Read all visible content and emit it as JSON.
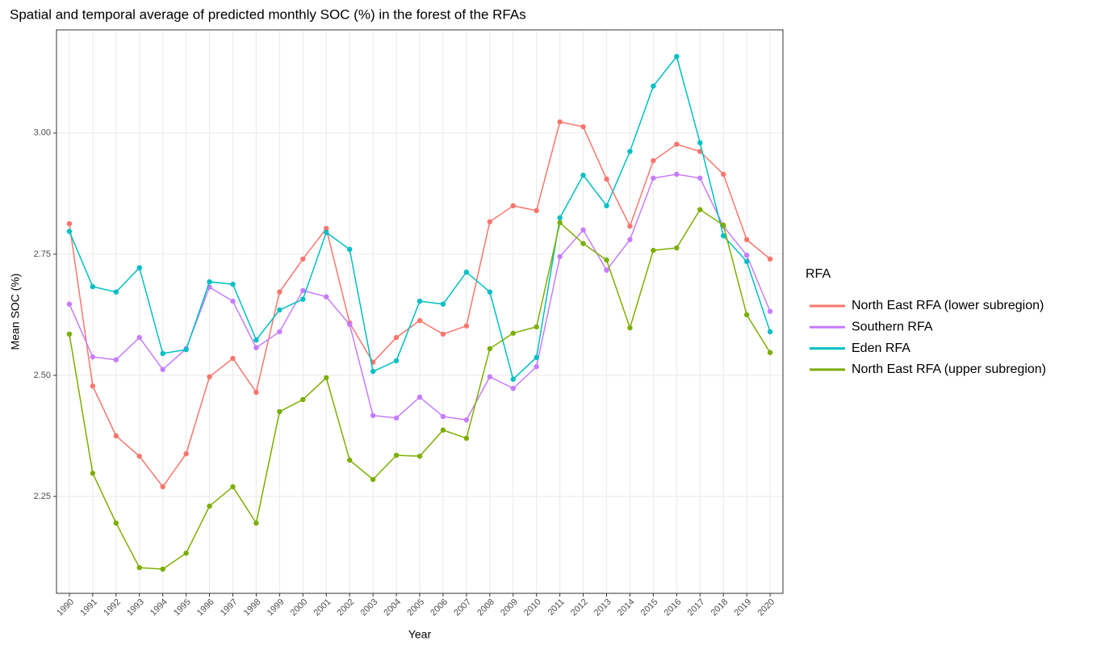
{
  "chart_data": {
    "type": "line",
    "title": "Spatial and temporal average of predicted monthly SOC (%) in the forest of the RFAs",
    "x_label": "Year",
    "y_label": "Mean SOC (%)",
    "legend_title": "RFA",
    "legend_position": "right",
    "grid": true,
    "x": [
      1990,
      1991,
      1992,
      1993,
      1994,
      1995,
      1996,
      1997,
      1998,
      1999,
      2000,
      2001,
      2002,
      2003,
      2004,
      2005,
      2006,
      2007,
      2008,
      2009,
      2010,
      2011,
      2012,
      2013,
      2014,
      2015,
      2016,
      2017,
      2018,
      2019,
      2020
    ],
    "xlim": [
      1989.45,
      2020.55
    ],
    "xticks": [
      1990,
      1991,
      1992,
      1993,
      1994,
      1995,
      1996,
      1997,
      1998,
      1999,
      2000,
      2001,
      2002,
      2003,
      2004,
      2005,
      2006,
      2007,
      2008,
      2009,
      2010,
      2011,
      2012,
      2013,
      2014,
      2015,
      2016,
      2017,
      2018,
      2019,
      2020
    ],
    "ylim": [
      2.05,
      3.213
    ],
    "yticks": [
      2.25,
      {
        "value": 2.5,
        "label": "2.50"
      },
      2.75,
      {
        "value": 3,
        "label": "3.00"
      }
    ],
    "series": [
      {
        "name": "North East RFA (lower subregion)",
        "color": "#F8766D",
        "values": [
          2.813,
          2.478,
          2.375,
          2.333,
          2.27,
          2.338,
          2.497,
          2.535,
          2.465,
          2.672,
          2.74,
          2.803,
          2.608,
          2.527,
          2.578,
          2.613,
          2.585,
          2.602,
          2.817,
          2.85,
          2.84,
          3.023,
          3.013,
          2.905,
          2.808,
          2.943,
          2.977,
          2.962,
          2.915,
          2.78,
          2.74
        ]
      },
      {
        "name": "Southern RFA",
        "color": "#C77CFF",
        "values": [
          2.647,
          2.538,
          2.532,
          2.578,
          2.512,
          2.555,
          2.682,
          2.653,
          2.557,
          2.59,
          2.675,
          2.662,
          2.605,
          2.417,
          2.412,
          2.455,
          2.415,
          2.408,
          2.497,
          2.473,
          2.518,
          2.745,
          2.8,
          2.717,
          2.78,
          2.907,
          2.915,
          2.907,
          2.808,
          2.748,
          2.632
        ]
      },
      {
        "name": "Eden RFA",
        "color": "#00BFC4",
        "values": [
          2.797,
          2.683,
          2.672,
          2.722,
          2.545,
          2.553,
          2.693,
          2.688,
          2.573,
          2.635,
          2.657,
          2.795,
          2.76,
          2.508,
          2.53,
          2.653,
          2.647,
          2.713,
          2.672,
          2.492,
          2.537,
          2.825,
          2.913,
          2.85,
          2.962,
          3.097,
          3.158,
          2.98,
          2.788,
          2.735,
          2.59
        ]
      },
      {
        "name": "North East RFA (upper subregion)",
        "color": "#7CAE00",
        "values": [
          2.585,
          2.298,
          2.195,
          2.103,
          2.1,
          2.133,
          2.23,
          2.27,
          2.195,
          2.425,
          2.45,
          2.495,
          2.325,
          2.285,
          2.335,
          2.333,
          2.387,
          2.37,
          2.555,
          2.587,
          2.6,
          2.815,
          2.772,
          2.738,
          2.598,
          2.758,
          2.763,
          2.842,
          2.81,
          2.625,
          2.547
        ]
      }
    ]
  }
}
